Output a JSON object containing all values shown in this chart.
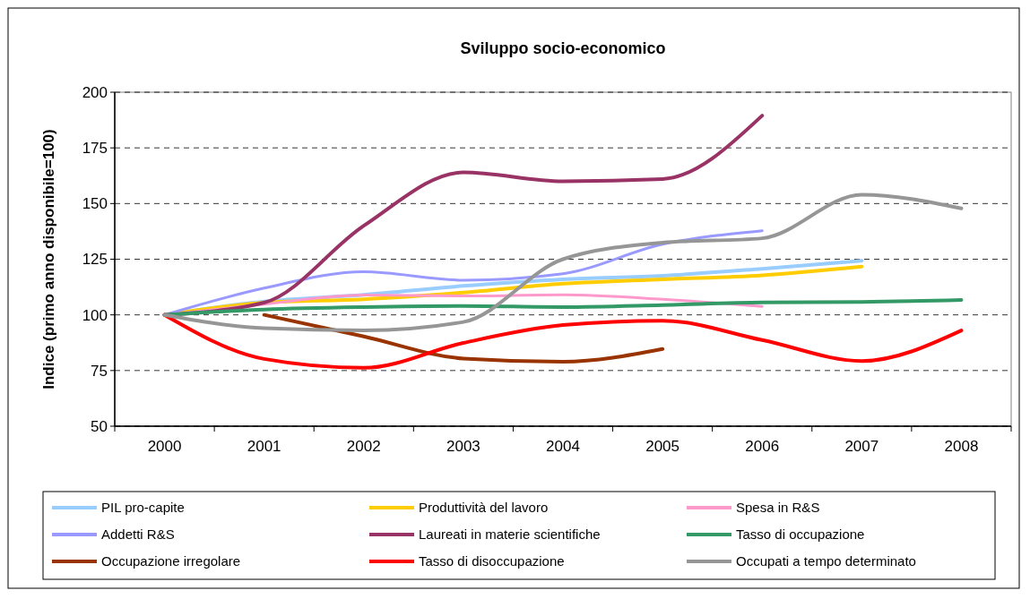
{
  "chart_data": {
    "type": "line",
    "title": "Sviluppo socio-economico",
    "ylabel": "Indice (primo anno disponibile=100)",
    "categories": [
      "2000",
      "2001",
      "2002",
      "2003",
      "2004",
      "2005",
      "2006",
      "2007",
      "2008"
    ],
    "ylim": [
      50,
      200
    ],
    "yticks": [
      50,
      75,
      100,
      125,
      150,
      175,
      200
    ],
    "grid": "y",
    "legend": "bottom",
    "line_style": "solid",
    "marker": "none",
    "series": [
      {
        "name": "PIL pro-capite",
        "color": "#99ccff",
        "values": [
          100,
          106,
          109,
          113,
          116,
          117.6,
          120.7,
          124.3,
          null
        ]
      },
      {
        "name": "Produttività del lavoro",
        "color": "#ffcc00",
        "values": [
          100,
          105.5,
          107,
          110,
          114,
          116,
          117.8,
          121.7,
          null
        ]
      },
      {
        "name": "Spesa in R&S",
        "color": "#ff99cc",
        "values": [
          100,
          104.8,
          108.9,
          108.5,
          109,
          107,
          103.8,
          null,
          null
        ]
      },
      {
        "name": "Addetti R&S",
        "color": "#9999ff",
        "values": [
          100,
          112,
          119.4,
          115.6,
          118.5,
          131.7,
          137.8,
          null,
          null
        ]
      },
      {
        "name": "Laureati in materie scientifiche",
        "color": "#993366",
        "values": [
          100,
          105.5,
          140,
          164,
          160,
          161,
          189.5,
          null,
          null
        ]
      },
      {
        "name": "Tasso di occupazione",
        "color": "#339966",
        "values": [
          100,
          102.4,
          103.5,
          104,
          103.5,
          104.4,
          105.6,
          105.8,
          106.7
        ]
      },
      {
        "name": "Occupazione irregolare",
        "color": "#993300",
        "values": [
          null,
          100,
          90.3,
          80.4,
          79,
          84.7,
          null,
          null,
          null
        ]
      },
      {
        "name": "Tasso di disoccupazione",
        "color": "#ff0000",
        "values": [
          100,
          80.2,
          76.2,
          87.4,
          95.4,
          97.4,
          88.7,
          79.3,
          93
        ]
      },
      {
        "name": "Occupati a tempo determinato",
        "color": "#969696",
        "values": [
          100,
          94,
          93,
          96.8,
          125,
          132.4,
          134.4,
          154,
          147.8
        ]
      }
    ]
  }
}
